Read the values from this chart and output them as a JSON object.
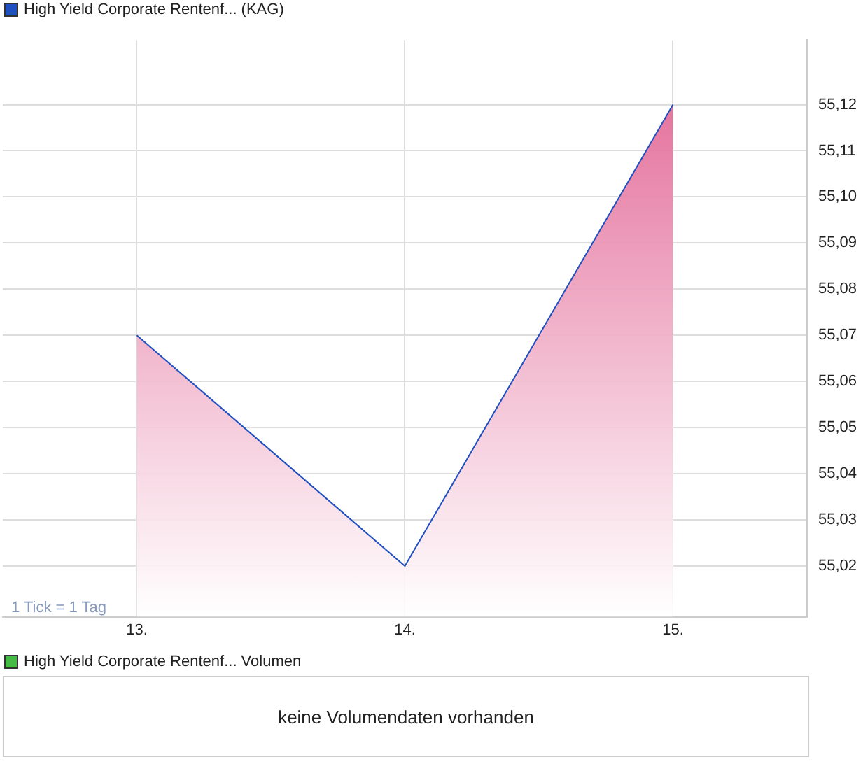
{
  "chart_data": [
    {
      "type": "area",
      "x": [
        13,
        14,
        15
      ],
      "series": [
        {
          "name": "High Yield Corporate Rentenf... (KAG)",
          "color": "#1f4fc0",
          "values": [
            55.07,
            55.02,
            55.12
          ]
        }
      ],
      "xlim": [
        12.5,
        15.5
      ],
      "xticks": [
        {
          "value": 13,
          "label": "13."
        },
        {
          "value": 14,
          "label": "14."
        },
        {
          "value": 15,
          "label": "15."
        }
      ],
      "ylim": [
        55.009,
        55.134
      ],
      "yticks": [
        {
          "value": 55.02,
          "label": "55,02"
        },
        {
          "value": 55.03,
          "label": "55,03"
        },
        {
          "value": 55.04,
          "label": "55,04"
        },
        {
          "value": 55.05,
          "label": "55,05"
        },
        {
          "value": 55.06,
          "label": "55,06"
        },
        {
          "value": 55.07,
          "label": "55,07"
        },
        {
          "value": 55.08,
          "label": "55,08"
        },
        {
          "value": 55.09,
          "label": "55,09"
        },
        {
          "value": 55.1,
          "label": "55,10"
        },
        {
          "value": 55.11,
          "label": "55,11"
        },
        {
          "value": 55.12,
          "label": "55,12"
        }
      ],
      "grid": true,
      "legend": "top left",
      "annotations": [
        "1 Tick = 1 Tag"
      ]
    },
    {
      "type": "other",
      "series": [
        {
          "name": "High Yield Corporate Rentenf... Volumen",
          "color": "#44bb44"
        }
      ],
      "legend": "top left",
      "annotations": [
        "keine Volumendaten vorhanden"
      ]
    }
  ]
}
